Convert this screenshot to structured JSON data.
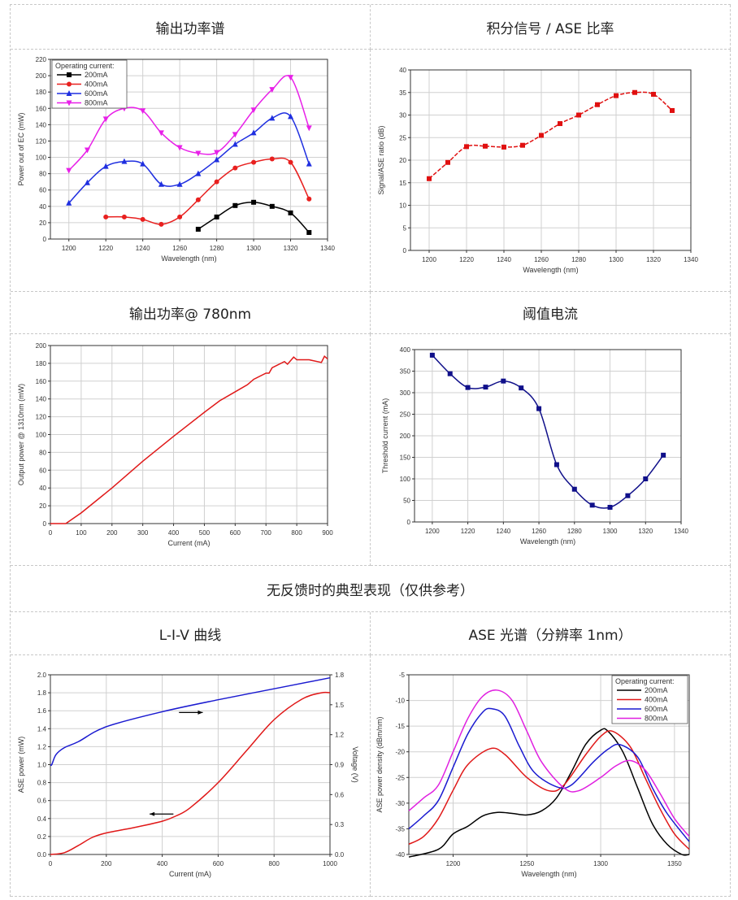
{
  "titles": {
    "output_spectrum": "输出功率谱",
    "signal_ase_ratio": "积分信号 / ASE 比率",
    "output_power_780": "输出功率@ 780nm",
    "threshold_current": "阈值电流",
    "no_feedback": "无反馈时的典型表现（仅供参考）",
    "liv_curve": "L-I-V 曲线",
    "ase_spectrum": "ASE  光谱（分辨率  1nm）"
  },
  "chart_data": [
    {
      "type": "line",
      "xlabel": "Wavelength (nm)",
      "ylabel": "Power out of EC (mW)",
      "xlim": [
        1190,
        1340
      ],
      "ylim": [
        0,
        220
      ],
      "xticks": [
        1200,
        1220,
        1240,
        1260,
        1280,
        1300,
        1320,
        1340
      ],
      "yticks": [
        0,
        20,
        40,
        60,
        80,
        100,
        120,
        140,
        160,
        180,
        200,
        220
      ],
      "grid": true,
      "legend": {
        "title": "Operating current:",
        "position": "top-left"
      },
      "series": [
        {
          "name": "200mA",
          "color": "#000000",
          "marker": "square",
          "x": [
            1270,
            1280,
            1290,
            1300,
            1310,
            1320,
            1330
          ],
          "y": [
            12,
            27,
            41,
            45,
            40,
            32,
            8
          ]
        },
        {
          "name": "400mA",
          "color": "#e8201f",
          "marker": "circle",
          "x": [
            1220,
            1230,
            1240,
            1250,
            1260,
            1270,
            1280,
            1290,
            1300,
            1310,
            1320,
            1330
          ],
          "y": [
            27,
            27,
            24,
            18,
            27,
            48,
            70,
            87,
            94,
            98,
            94,
            49
          ]
        },
        {
          "name": "600mA",
          "color": "#1f2fe0",
          "marker": "triangle-up",
          "x": [
            1200,
            1210,
            1220,
            1230,
            1240,
            1250,
            1260,
            1270,
            1280,
            1290,
            1300,
            1310,
            1320,
            1330
          ],
          "y": [
            44,
            69,
            89,
            95,
            92,
            67,
            67,
            80,
            97,
            116,
            130,
            148,
            150,
            92
          ]
        },
        {
          "name": "800mA",
          "color": "#e820e8",
          "marker": "triangle-down",
          "x": [
            1200,
            1210,
            1220,
            1230,
            1240,
            1250,
            1260,
            1270,
            1280,
            1290,
            1300,
            1310,
            1320,
            1330
          ],
          "y": [
            84,
            109,
            147,
            160,
            157,
            130,
            112,
            105,
            106,
            128,
            158,
            183,
            198,
            136
          ]
        }
      ]
    },
    {
      "type": "line",
      "xlabel": "Wavelength (nm)",
      "ylabel": "Signal/ASE ratio (dB)",
      "xlim": [
        1190,
        1340
      ],
      "ylim": [
        0,
        40
      ],
      "xticks": [
        1200,
        1220,
        1240,
        1260,
        1280,
        1300,
        1320,
        1340
      ],
      "yticks": [
        0,
        5,
        10,
        15,
        20,
        25,
        30,
        35,
        40
      ],
      "grid": true,
      "series": [
        {
          "name": "Signal/ASE",
          "color": "#e01010",
          "marker": "square",
          "dash": true,
          "x": [
            1200,
            1210,
            1220,
            1230,
            1240,
            1250,
            1260,
            1270,
            1280,
            1290,
            1300,
            1310,
            1320,
            1330
          ],
          "y": [
            15.9,
            19.5,
            23,
            23.1,
            22.9,
            23.3,
            25.5,
            28.1,
            30,
            32.3,
            34.3,
            35,
            34.6,
            31
          ]
        }
      ]
    },
    {
      "type": "line",
      "xlabel": "Current (mA)",
      "ylabel": "Output power @ 1310nm (mW)",
      "xlim": [
        0,
        900
      ],
      "ylim": [
        0,
        200
      ],
      "xticks": [
        0,
        100,
        200,
        300,
        400,
        500,
        600,
        700,
        800,
        900
      ],
      "yticks": [
        0,
        20,
        40,
        60,
        80,
        100,
        120,
        140,
        160,
        180,
        200
      ],
      "grid": true,
      "series": [
        {
          "name": "Output power",
          "color": "#e01818",
          "marker": "none",
          "linear": true,
          "x": [
            0,
            50,
            100,
            200,
            300,
            400,
            500,
            550,
            600,
            640,
            660,
            700,
            710,
            720,
            760,
            770,
            790,
            800,
            840,
            880,
            890,
            900
          ],
          "y": [
            0,
            0,
            12,
            40,
            70,
            98,
            125,
            138,
            148,
            156,
            162,
            169,
            169,
            175,
            182,
            179,
            187,
            184,
            184,
            181,
            188,
            185
          ]
        }
      ]
    },
    {
      "type": "line",
      "xlabel": "Wavelength (nm)",
      "ylabel": "Threshold current (mA)",
      "xlim": [
        1190,
        1340
      ],
      "ylim": [
        0,
        400
      ],
      "xticks": [
        1200,
        1220,
        1240,
        1260,
        1280,
        1300,
        1320,
        1340
      ],
      "yticks": [
        0,
        50,
        100,
        150,
        200,
        250,
        300,
        350,
        400
      ],
      "grid": true,
      "series": [
        {
          "name": "Threshold",
          "color": "#10108a",
          "marker": "square",
          "x": [
            1200,
            1210,
            1220,
            1230,
            1240,
            1250,
            1260,
            1270,
            1280,
            1290,
            1300,
            1310,
            1320,
            1330
          ],
          "y": [
            387,
            344,
            312,
            313,
            327,
            311,
            263,
            133,
            76,
            39,
            34,
            61,
            100,
            155
          ]
        }
      ]
    },
    {
      "type": "line",
      "xlabel": "Current (mA)",
      "ylabel": "ASE power (mW)",
      "y2label": "Voltage (V)",
      "xlim": [
        0,
        1000
      ],
      "ylim": [
        0,
        2.0
      ],
      "y2lim": [
        0,
        1.8
      ],
      "xticks": [
        0,
        200,
        400,
        600,
        800,
        1000
      ],
      "yticks": [
        "0.0",
        "0.2",
        "0.4",
        "0.6",
        "0.8",
        "1.0",
        "1.2",
        "1.4",
        "1.6",
        "1.8",
        "2.0"
      ],
      "y2ticks": [
        "0.0",
        "0.3",
        "0.6",
        "0.9",
        "1.2",
        "1.5",
        "1.8"
      ],
      "grid": true,
      "series": [
        {
          "name": "ASE power",
          "color": "#e01818",
          "marker": "none",
          "axis": "left",
          "x": [
            0,
            50,
            100,
            150,
            200,
            300,
            400,
            450,
            500,
            600,
            700,
            800,
            900,
            970,
            1000
          ],
          "y": [
            0,
            0.02,
            0.1,
            0.19,
            0.24,
            0.3,
            0.37,
            0.43,
            0.52,
            0.8,
            1.15,
            1.5,
            1.73,
            1.8,
            1.8
          ]
        },
        {
          "name": "Voltage",
          "color": "#1a1ad0",
          "marker": "none",
          "axis": "right",
          "x": [
            0,
            5,
            20,
            50,
            100,
            200,
            400,
            600,
            800,
            1000
          ],
          "y": [
            0.9,
            0.9,
            1.0,
            1.07,
            1.13,
            1.28,
            1.43,
            1.55,
            1.66,
            1.77
          ]
        }
      ]
    },
    {
      "type": "line",
      "xlabel": "Wavelength (nm)",
      "ylabel": "ASE power density (dBm/nm)",
      "xlim": [
        1170,
        1360
      ],
      "ylim": [
        -40,
        -5
      ],
      "xticks": [
        1200,
        1250,
        1300,
        1350
      ],
      "yticks": [
        -40,
        -35,
        -30,
        -25,
        -20,
        -15,
        -10,
        -5
      ],
      "grid": true,
      "legend": {
        "title": "Operating current:",
        "position": "top-right"
      },
      "series": [
        {
          "name": "200mA",
          "color": "#000000",
          "marker": "none",
          "x": [
            1170,
            1190,
            1200,
            1210,
            1220,
            1230,
            1240,
            1250,
            1260,
            1270,
            1280,
            1290,
            1300,
            1305,
            1315,
            1325,
            1335,
            1345,
            1355,
            1360
          ],
          "y": [
            -40.5,
            -39,
            -36,
            -34.5,
            -32.5,
            -31.8,
            -32,
            -32.3,
            -31.5,
            -29,
            -24,
            -18.5,
            -15.8,
            -16,
            -20,
            -27,
            -34,
            -38,
            -40,
            -40
          ]
        },
        {
          "name": "400mA",
          "color": "#e01818",
          "marker": "none",
          "x": [
            1170,
            1180,
            1190,
            1200,
            1210,
            1225,
            1235,
            1250,
            1265,
            1275,
            1290,
            1300,
            1308,
            1320,
            1330,
            1340,
            1350,
            1360
          ],
          "y": [
            -38,
            -36.5,
            -33,
            -27.5,
            -22.5,
            -19.4,
            -20.5,
            -25,
            -27.6,
            -26.5,
            -20.5,
            -17,
            -16,
            -19,
            -25,
            -31,
            -36,
            -39
          ]
        },
        {
          "name": "600mA",
          "color": "#1a1ad0",
          "marker": "none",
          "x": [
            1170,
            1180,
            1190,
            1200,
            1210,
            1220,
            1226,
            1235,
            1245,
            1255,
            1270,
            1280,
            1295,
            1305,
            1313,
            1325,
            1335,
            1345,
            1360
          ],
          "y": [
            -35,
            -32.5,
            -29.5,
            -23,
            -16.5,
            -12.3,
            -11.6,
            -13,
            -19,
            -24,
            -26.8,
            -26.5,
            -22,
            -19.5,
            -18.6,
            -21,
            -27,
            -32,
            -37.5
          ]
        },
        {
          "name": "800mA",
          "color": "#e020e0",
          "marker": "none",
          "x": [
            1170,
            1180,
            1190,
            1200,
            1210,
            1220,
            1230,
            1240,
            1250,
            1260,
            1275,
            1285,
            1300,
            1310,
            1320,
            1330,
            1340,
            1350,
            1360
          ],
          "y": [
            -31.5,
            -29,
            -26.5,
            -20,
            -13.5,
            -9.2,
            -8,
            -10,
            -16,
            -22,
            -27,
            -27.6,
            -25,
            -22.8,
            -21.7,
            -23.5,
            -28,
            -33,
            -36.5
          ]
        }
      ]
    }
  ]
}
